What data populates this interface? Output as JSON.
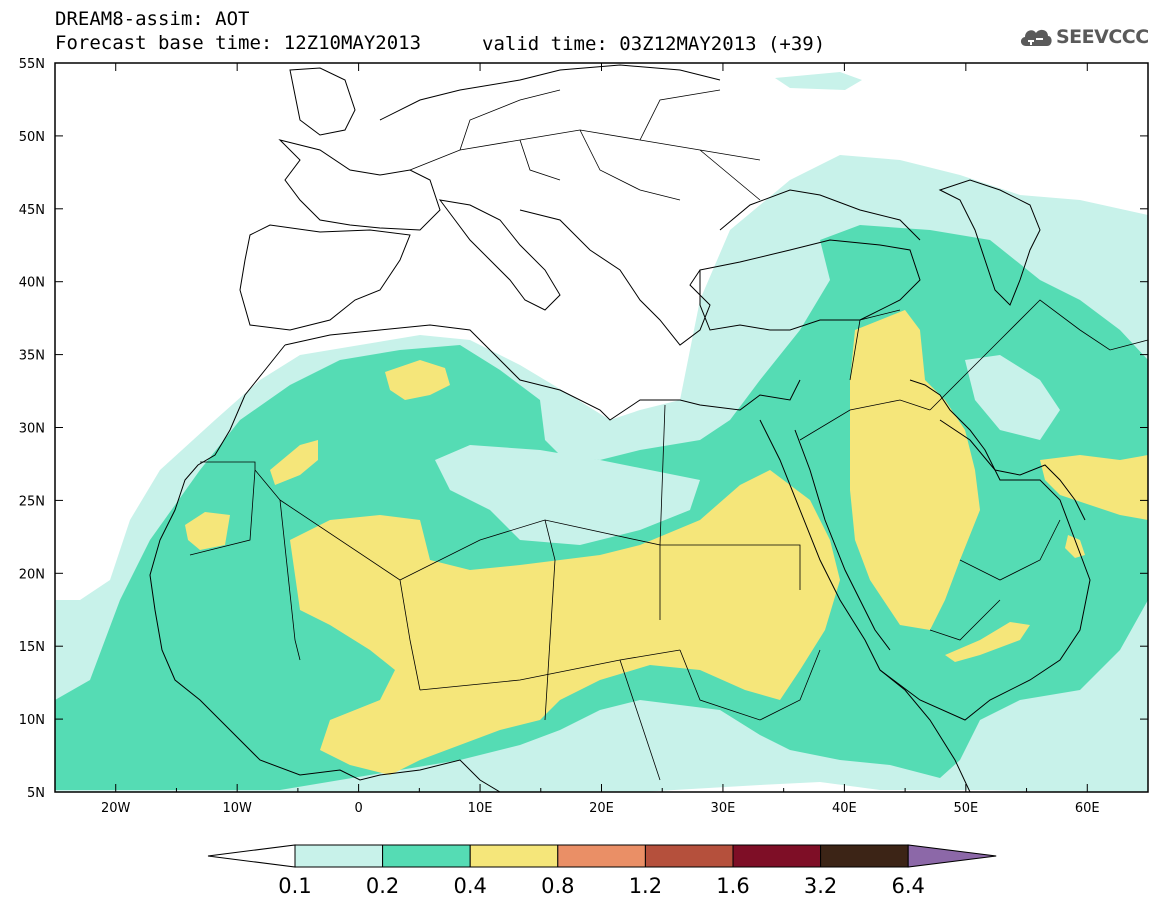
{
  "header": {
    "title": "DREAM8-assim: AOT",
    "base_time": "Forecast base time: 12Z10MAY2013",
    "valid_time": "valid time: 03Z12MAY2013 (+39)",
    "logo_text": "SEEVCCC",
    "logo_icon": "cloud-icon"
  },
  "axes": {
    "lat_labels": [
      "55N",
      "50N",
      "45N",
      "40N",
      "35N",
      "30N",
      "25N",
      "20N",
      "15N",
      "10N",
      "5N"
    ],
    "lon_labels": [
      "20W",
      "10W",
      "0",
      "10E",
      "20E",
      "30E",
      "40E",
      "50E",
      "60E"
    ],
    "lat_range": [
      5,
      55
    ],
    "lon_range": [
      -25,
      65
    ]
  },
  "colorbar": {
    "levels": [
      "0.1",
      "0.2",
      "0.4",
      "0.8",
      "1.2",
      "1.6",
      "3.2",
      "6.4"
    ],
    "colors": [
      "#c8f2ea",
      "#55dcb4",
      "#f5e67a",
      "#ea8f66",
      "#b5503c",
      "#7e0e26",
      "#3c2416",
      "#8c68a8"
    ],
    "under_color": "#ffffff"
  },
  "fields": {
    "land_line_color": "#000000",
    "ocean_color": "#ffffff"
  }
}
